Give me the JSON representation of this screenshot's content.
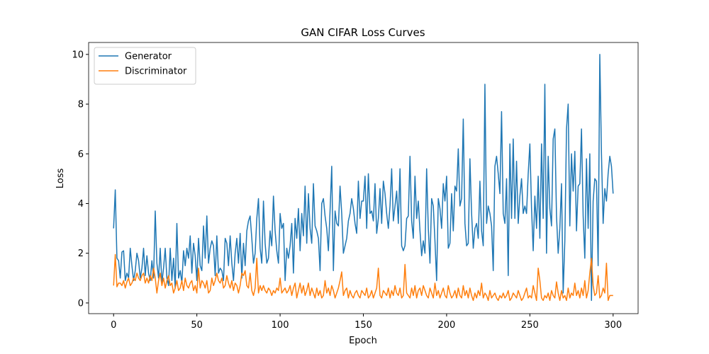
{
  "chart_data": {
    "type": "line",
    "title": "GAN CIFAR Loss Curves",
    "xlabel": "Epoch",
    "ylabel": "Loss",
    "xlim": [
      -15,
      315
    ],
    "ylim": [
      -0.43,
      10.48
    ],
    "xticks": [
      0,
      50,
      100,
      150,
      200,
      250,
      300
    ],
    "yticks": [
      0,
      2,
      4,
      6,
      8,
      10
    ],
    "grid": false,
    "legend": "upper left",
    "x": [
      0,
      1,
      2,
      3,
      4,
      5,
      6,
      7,
      8,
      9,
      10,
      11,
      12,
      13,
      14,
      15,
      16,
      17,
      18,
      19,
      20,
      21,
      22,
      23,
      24,
      25,
      26,
      27,
      28,
      29,
      30,
      31,
      32,
      33,
      34,
      35,
      36,
      37,
      38,
      39,
      40,
      41,
      42,
      43,
      44,
      45,
      46,
      47,
      48,
      49,
      50,
      51,
      52,
      53,
      54,
      55,
      56,
      57,
      58,
      59,
      60,
      61,
      62,
      63,
      64,
      65,
      66,
      67,
      68,
      69,
      70,
      71,
      72,
      73,
      74,
      75,
      76,
      77,
      78,
      79,
      80,
      81,
      82,
      83,
      84,
      85,
      86,
      87,
      88,
      89,
      90,
      91,
      92,
      93,
      94,
      95,
      96,
      97,
      98,
      99,
      100,
      101,
      102,
      103,
      104,
      105,
      106,
      107,
      108,
      109,
      110,
      111,
      112,
      113,
      114,
      115,
      116,
      117,
      118,
      119,
      120,
      121,
      122,
      123,
      124,
      125,
      126,
      127,
      128,
      129,
      130,
      131,
      132,
      133,
      134,
      135,
      136,
      137,
      138,
      139,
      140,
      141,
      142,
      143,
      144,
      145,
      146,
      147,
      148,
      149,
      150,
      151,
      152,
      153,
      154,
      155,
      156,
      157,
      158,
      159,
      160,
      161,
      162,
      163,
      164,
      165,
      166,
      167,
      168,
      169,
      170,
      171,
      172,
      173,
      174,
      175,
      176,
      177,
      178,
      179,
      180,
      181,
      182,
      183,
      184,
      185,
      186,
      187,
      188,
      189,
      190,
      191,
      192,
      193,
      194,
      195,
      196,
      197,
      198,
      199,
      200,
      201,
      202,
      203,
      204,
      205,
      206,
      207,
      208,
      209,
      210,
      211,
      212,
      213,
      214,
      215,
      216,
      217,
      218,
      219,
      220,
      221,
      222,
      223,
      224,
      225,
      226,
      227,
      228,
      229,
      230,
      231,
      232,
      233,
      234,
      235,
      236,
      237,
      238,
      239,
      240,
      241,
      242,
      243,
      244,
      245,
      246,
      247,
      248,
      249,
      250,
      251,
      252,
      253,
      254,
      255,
      256,
      257,
      258,
      259,
      260,
      261,
      262,
      263,
      264,
      265,
      266,
      267,
      268,
      269,
      270,
      271,
      272,
      273,
      274,
      275,
      276,
      277,
      278,
      279,
      280,
      281,
      282,
      283,
      284,
      285,
      286,
      287,
      288,
      289,
      290,
      291,
      292,
      293,
      294,
      295,
      296,
      297,
      298,
      299,
      300
    ],
    "series": [
      {
        "name": "Generator",
        "color": "#1f77b4",
        "values": [
          3.0,
          4.55,
          1.8,
          1.7,
          1.0,
          2.05,
          2.1,
          0.9,
          1.2,
          1.0,
          2.2,
          1.5,
          0.9,
          1.3,
          2.0,
          1.7,
          1.0,
          1.4,
          2.2,
          1.1,
          1.9,
          1.2,
          0.9,
          1.7,
          1.0,
          3.7,
          1.6,
          1.0,
          2.2,
          0.8,
          1.4,
          2.2,
          1.0,
          0.7,
          2.2,
          0.9,
          1.8,
          0.6,
          3.2,
          1.0,
          1.3,
          0.8,
          2.1,
          1.5,
          2.2,
          1.8,
          2.7,
          1.2,
          2.4,
          1.9,
          0.9,
          2.6,
          1.5,
          1.3,
          3.1,
          1.8,
          3.5,
          1.6,
          2.2,
          2.5,
          2.3,
          1.1,
          2.7,
          1.2,
          1.4,
          1.3,
          0.9,
          2.6,
          2.4,
          1.5,
          2.7,
          1.6,
          0.9,
          2.0,
          2.6,
          1.6,
          2.8,
          1.0,
          2.4,
          1.5,
          2.9,
          3.3,
          3.5,
          2.6,
          1.6,
          2.0,
          3.4,
          4.2,
          2.2,
          1.6,
          4.1,
          2.4,
          1.6,
          1.8,
          2.9,
          2.3,
          4.3,
          2.9,
          2.1,
          1.6,
          3.6,
          3.0,
          3.2,
          0.9,
          2.2,
          1.8,
          2.3,
          3.2,
          1.2,
          3.4,
          2.6,
          3.8,
          2.1,
          3.6,
          2.7,
          4.7,
          2.4,
          4.4,
          3.0,
          2.4,
          4.8,
          3.1,
          2.9,
          2.6,
          1.3,
          4.0,
          4.2,
          3.5,
          3.0,
          2.1,
          3.7,
          5.5,
          1.3,
          3.7,
          3.2,
          3.1,
          4.7,
          3.6,
          2.0,
          2.3,
          2.6,
          3.3,
          3.6,
          4.2,
          3.8,
          3.2,
          2.8,
          4.9,
          3.4,
          4.1,
          4.1,
          5.1,
          3.0,
          5.2,
          3.6,
          3.7,
          3.3,
          4.8,
          2.8,
          3.4,
          4.6,
          3.2,
          4.9,
          4.4,
          3.6,
          3.0,
          3.9,
          5.4,
          3.3,
          3.9,
          4.5,
          3.2,
          5.4,
          2.3,
          2.1,
          2.3,
          3.4,
          3.5,
          5.9,
          3.3,
          2.6,
          5.1,
          3.4,
          4.1,
          2.9,
          1.9,
          2.5,
          2.0,
          5.4,
          3.0,
          1.6,
          4.2,
          3.9,
          2.5,
          0.9,
          4.2,
          3.8,
          3.0,
          4.8,
          4.1,
          5.1,
          2.2,
          2.4,
          4.4,
          2.9,
          4.7,
          4.5,
          6.2,
          3.9,
          4.2,
          7.4,
          3.2,
          2.3,
          2.4,
          5.8,
          3.6,
          2.2,
          3.0,
          3.2,
          2.6,
          4.9,
          2.9,
          2.3,
          8.8,
          3.2,
          3.9,
          3.6,
          3.1,
          1.3,
          5.5,
          5.9,
          5.2,
          4.4,
          7.7,
          3.6,
          3.2,
          5.0,
          1.1,
          6.4,
          3.4,
          6.6,
          3.4,
          5.7,
          3.2,
          4.3,
          5.0,
          3.6,
          3.9,
          3.6,
          5.2,
          6.4,
          3.8,
          2.1,
          4.3,
          3.0,
          5.1,
          2.6,
          6.4,
          3.4,
          8.8,
          2.0,
          5.9,
          3.8,
          3.1,
          6.6,
          7.0,
          3.5,
          2.0,
          3.0,
          4.8,
          0.4,
          2.5,
          7.0,
          8.0,
          3.1,
          6.0,
          4.5,
          6.1,
          2.9,
          4.7,
          4.8,
          7.0,
          3.5,
          1.8,
          5.8,
          3.0,
          6.0,
          0.1,
          4.1,
          5.0,
          4.9,
          1.5,
          10.0,
          6.0,
          3.2,
          4.6,
          4.1,
          5.2,
          5.9,
          5.5,
          4.4
        ]
      },
      {
        "name": "Discriminator",
        "color": "#ff7f0e",
        "values": [
          0.7,
          1.95,
          0.65,
          0.8,
          0.8,
          0.7,
          0.9,
          0.6,
          0.85,
          1.0,
          0.7,
          0.8,
          1.0,
          0.9,
          1.2,
          1.0,
          0.9,
          1.1,
          1.2,
          0.8,
          1.0,
          0.8,
          1.1,
          0.9,
          1.4,
          1.0,
          0.4,
          0.9,
          1.2,
          0.7,
          1.0,
          0.6,
          0.9,
          1.1,
          0.7,
          0.8,
          0.4,
          0.6,
          0.9,
          0.5,
          0.6,
          0.9,
          0.5,
          1.0,
          0.7,
          0.6,
          0.8,
          0.9,
          0.5,
          0.7,
          0.4,
          1.4,
          0.6,
          0.9,
          0.8,
          0.6,
          0.9,
          0.4,
          0.5,
          1.0,
          0.7,
          0.9,
          1.2,
          0.9,
          0.8,
          1.0,
          0.6,
          0.7,
          1.1,
          0.8,
          0.6,
          0.9,
          0.5,
          0.8,
          0.7,
          0.4,
          0.7,
          1.2,
          1.1,
          1.3,
          0.7,
          0.6,
          1.2,
          0.5,
          0.3,
          0.6,
          1.8,
          0.4,
          0.7,
          0.5,
          0.7,
          0.5,
          0.4,
          0.6,
          0.5,
          0.3,
          0.5,
          0.4,
          0.6,
          0.5,
          1.0,
          0.4,
          0.5,
          0.6,
          0.4,
          0.5,
          0.7,
          0.3,
          0.6,
          0.8,
          0.2,
          0.5,
          0.8,
          0.4,
          0.7,
          0.3,
          0.5,
          0.8,
          0.3,
          0.6,
          0.4,
          0.2,
          0.6,
          0.3,
          0.5,
          0.2,
          0.3,
          0.9,
          0.4,
          0.6,
          0.3,
          0.7,
          0.5,
          0.2,
          0.4,
          0.6,
          0.9,
          1.25,
          0.3,
          0.5,
          0.6,
          0.2,
          0.5,
          0.3,
          0.2,
          0.4,
          0.5,
          0.3,
          0.2,
          0.5,
          0.4,
          0.3,
          0.6,
          0.2,
          0.3,
          0.5,
          0.2,
          0.4,
          0.6,
          1.4,
          0.3,
          0.2,
          0.5,
          0.4,
          0.3,
          0.6,
          0.2,
          0.5,
          0.3,
          0.7,
          0.4,
          0.3,
          0.6,
          0.2,
          0.3,
          1.55,
          0.4,
          0.3,
          0.2,
          0.6,
          0.3,
          0.7,
          0.2,
          0.5,
          0.6,
          0.3,
          0.7,
          0.5,
          0.3,
          0.2,
          0.6,
          0.4,
          0.2,
          0.8,
          0.3,
          0.5,
          0.2,
          0.4,
          0.6,
          0.3,
          0.2,
          0.7,
          0.4,
          0.2,
          0.3,
          0.5,
          0.2,
          0.6,
          0.3,
          0.2,
          0.7,
          0.3,
          0.5,
          0.2,
          0.6,
          0.3,
          0.1,
          0.4,
          0.2,
          0.5,
          0.3,
          0.8,
          0.2,
          0.4,
          0.3,
          0.1,
          0.5,
          0.2,
          0.3,
          0.4,
          0.2,
          0.1,
          0.3,
          0.2,
          0.4,
          0.2,
          0.3,
          0.5,
          0.1,
          0.2,
          0.4,
          0.3,
          0.2,
          0.5,
          0.3,
          0.1,
          0.2,
          0.4,
          0.6,
          0.2,
          0.3,
          0.2,
          0.7,
          0.4,
          0.1,
          1.4,
          0.9,
          0.2,
          0.1,
          0.3,
          0.2,
          0.4,
          0.1,
          0.5,
          0.3,
          0.2,
          0.85,
          0.4,
          0.1,
          0.5,
          0.2,
          0.3,
          0.1,
          0.6,
          0.2,
          0.4,
          0.3,
          0.8,
          0.3,
          0.5,
          0.2,
          0.6,
          0.3,
          0.9,
          0.2,
          0.5,
          1.2,
          1.8,
          0.7,
          0.3,
          0.4,
          1.1,
          0.2,
          0.3,
          0.6,
          0.4,
          1.6,
          0.1,
          0.3,
          0.3,
          0.3
        ]
      }
    ]
  }
}
